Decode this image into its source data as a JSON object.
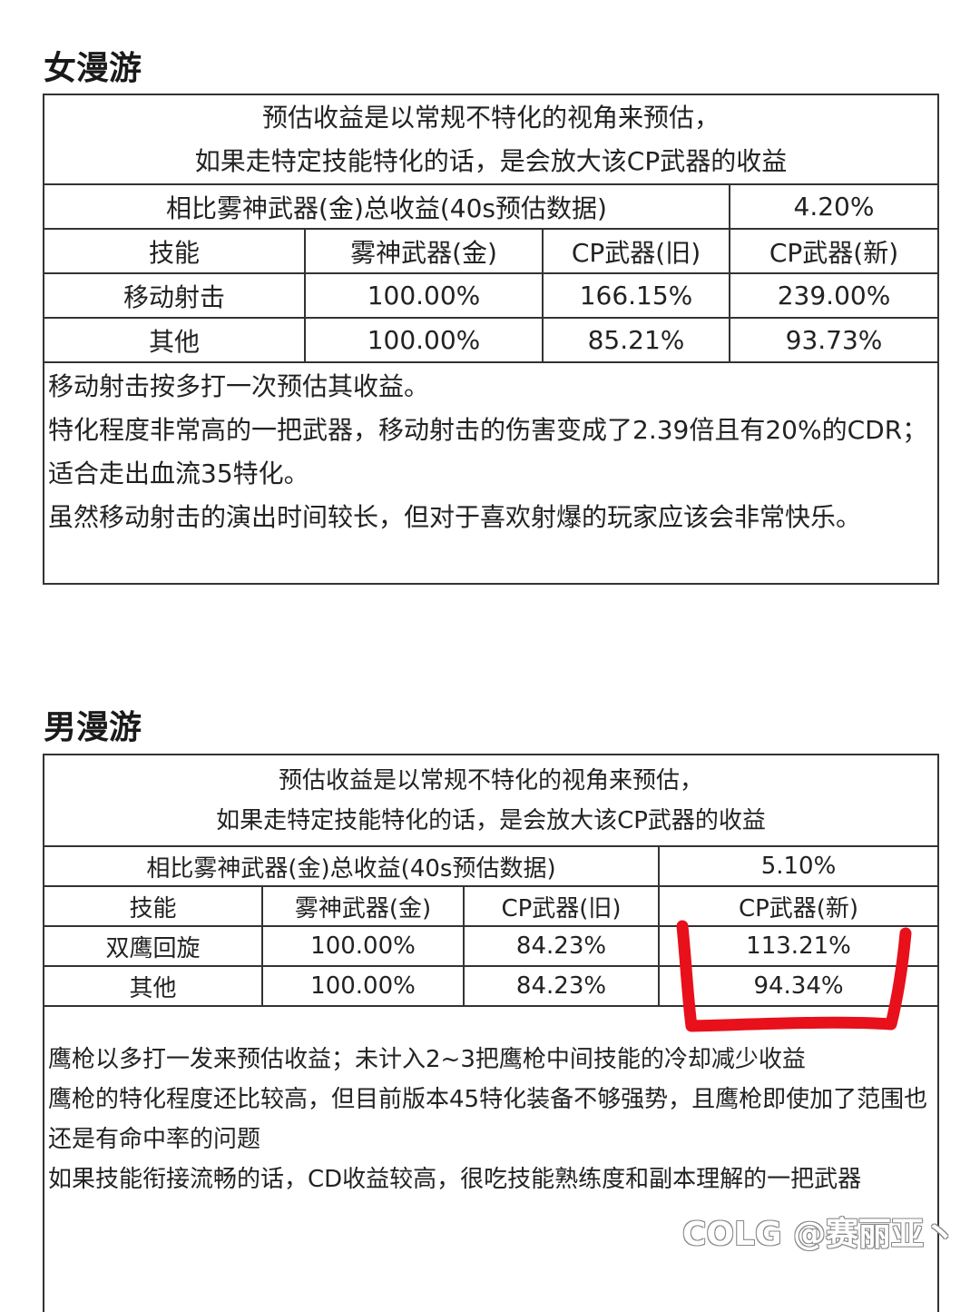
{
  "sections": [
    {
      "title": "女漫游",
      "intro": [
        "预估收益是以常规不特化的视角来预估，",
        "如果走特定技能特化的话，是会放大该CP武器的收益"
      ],
      "total_label": "相比雾神武器(金)总收益(40s预估数据)",
      "total_value": "4.20%",
      "headers": [
        "技能",
        "雾神武器(金)",
        "CP武器(旧)",
        "CP武器(新)"
      ],
      "rows": [
        [
          "移动射击",
          "100.00%",
          "166.15%",
          "239.00%"
        ],
        [
          "其他",
          "100.00%",
          "85.21%",
          "93.73%"
        ]
      ],
      "notes": [
        "移动射击按多打一次预估其收益。",
        "特化程度非常高的一把武器，移动射击的伤害变成了2.39倍且有20%的CDR；适合走出血流35特化。",
        "虽然移动射击的演出时间较长，但对于喜欢射爆的玩家应该会非常快乐。"
      ]
    },
    {
      "title": "男漫游",
      "intro": [
        "预估收益是以常规不特化的视角来预估，",
        "如果走特定技能特化的话，是会放大该CP武器的收益"
      ],
      "total_label": "相比雾神武器(金)总收益(40s预估数据)",
      "total_value": "5.10%",
      "headers": [
        "技能",
        "雾神武器(金)",
        "CP武器(旧)",
        "CP武器(新)"
      ],
      "rows": [
        [
          "双鹰回旋",
          "100.00%",
          "84.23%",
          "113.21%"
        ],
        [
          "其他",
          "100.00%",
          "84.23%",
          "94.34%"
        ]
      ],
      "notes": [
        "鹰枪以多打一发来预估收益；未计入2~3把鹰枪中间技能的冷却减少收益",
        "鹰枪的特化程度还比较高，但目前版本45特化装备不够强势，且鹰枪即使加了范围也还是有命中率的问题",
        "如果技能衔接流畅的话，CD收益较高，很吃技能熟练度和副本理解的一把武器"
      ]
    }
  ],
  "annotation_color": "#e8101a",
  "watermark": "COLG @赛丽亚丶"
}
